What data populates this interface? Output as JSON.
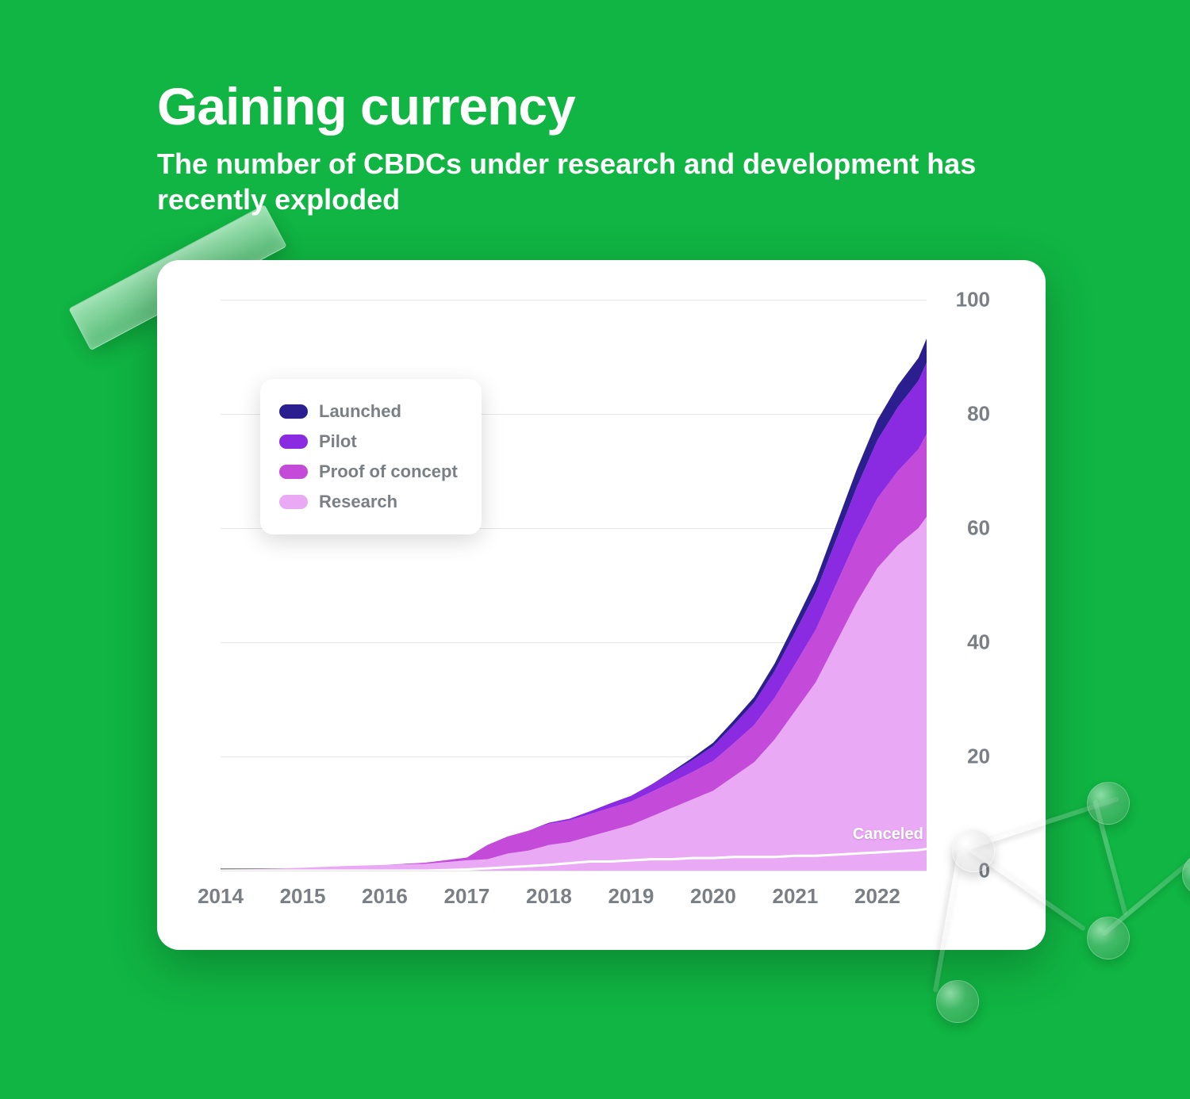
{
  "header": {
    "title": "Gaining currency",
    "subtitle": "The number of CBDCs under research and development has recently exploded"
  },
  "chart": {
    "type": "stacked-area",
    "background_color": "#ffffff",
    "card_radius": 28,
    "grid_color": "#e6e6e6",
    "axis_color": "#8e8e8e",
    "tick_color": "#7a7f86",
    "tick_fontsize": 26,
    "tick_fontweight": 700,
    "x_start": 2014,
    "x_end": 2022.6,
    "x_ticks": [
      2014,
      2015,
      2016,
      2017,
      2018,
      2019,
      2020,
      2021,
      2022
    ],
    "ylim": [
      0,
      100
    ],
    "y_ticks": [
      0,
      20,
      40,
      60,
      80,
      100
    ],
    "series": [
      {
        "key": "research",
        "label": "Research",
        "color": "#e9a9f4"
      },
      {
        "key": "poc",
        "label": "Proof of concept",
        "color": "#c44bd9"
      },
      {
        "key": "pilot",
        "label": "Pilot",
        "color": "#8a2be2"
      },
      {
        "key": "launched",
        "label": "Launched",
        "color": "#2b1f8f"
      }
    ],
    "legend_order": [
      "launched",
      "pilot",
      "poc",
      "research"
    ],
    "canceled": {
      "label": "Canceled",
      "color": "#ffffff",
      "stroke_width": 3
    },
    "x": [
      2014.0,
      2014.5,
      2015.0,
      2015.5,
      2016.0,
      2016.5,
      2017.0,
      2017.25,
      2017.5,
      2017.75,
      2018.0,
      2018.25,
      2018.5,
      2018.75,
      2019.0,
      2019.25,
      2019.5,
      2019.75,
      2020.0,
      2020.25,
      2020.5,
      2020.75,
      2021.0,
      2021.25,
      2021.5,
      2021.75,
      2022.0,
      2022.25,
      2022.5,
      2022.6
    ],
    "data": {
      "research": [
        0.2,
        0.3,
        0.5,
        0.8,
        1.0,
        1.2,
        1.8,
        2.0,
        3.0,
        3.5,
        4.5,
        5.0,
        6.0,
        7.0,
        8.0,
        9.5,
        11.0,
        12.5,
        14.0,
        16.5,
        19.0,
        23.0,
        28.0,
        33.0,
        40.0,
        47.0,
        53.0,
        57.0,
        60.0,
        62.0
      ],
      "poc": [
        0.0,
        0.0,
        0.0,
        0.0,
        0.0,
        0.2,
        0.5,
        2.5,
        3.0,
        3.5,
        3.7,
        3.8,
        3.9,
        4.0,
        4.1,
        4.3,
        4.5,
        4.8,
        5.2,
        5.8,
        6.5,
        7.3,
        8.2,
        9.2,
        10.2,
        11.2,
        12.2,
        13.0,
        13.8,
        14.5
      ],
      "pilot": [
        0.0,
        0.0,
        0.0,
        0.0,
        0.0,
        0.0,
        0.0,
        0.0,
        0.0,
        0.0,
        0.2,
        0.3,
        0.5,
        0.8,
        1.0,
        1.3,
        1.7,
        2.1,
        2.6,
        3.2,
        3.9,
        4.7,
        5.6,
        6.6,
        7.8,
        9.0,
        10.2,
        11.2,
        12.0,
        12.5
      ],
      "launched": [
        0.0,
        0.0,
        0.0,
        0.0,
        0.0,
        0.0,
        0.0,
        0.0,
        0.0,
        0.0,
        0.0,
        0.0,
        0.0,
        0.0,
        0.0,
        0.0,
        0.2,
        0.4,
        0.6,
        0.8,
        1.0,
        1.3,
        1.7,
        2.1,
        2.6,
        3.1,
        3.5,
        3.8,
        4.0,
        4.2
      ],
      "canceled": [
        0.0,
        0.0,
        0.0,
        0.0,
        0.0,
        0.0,
        0.2,
        0.4,
        0.6,
        0.8,
        1.0,
        1.3,
        1.6,
        1.6,
        1.8,
        2.0,
        2.0,
        2.2,
        2.2,
        2.4,
        2.4,
        2.4,
        2.6,
        2.6,
        2.8,
        3.0,
        3.2,
        3.4,
        3.6,
        3.8
      ]
    }
  },
  "page": {
    "bg_color": "#10b543"
  }
}
